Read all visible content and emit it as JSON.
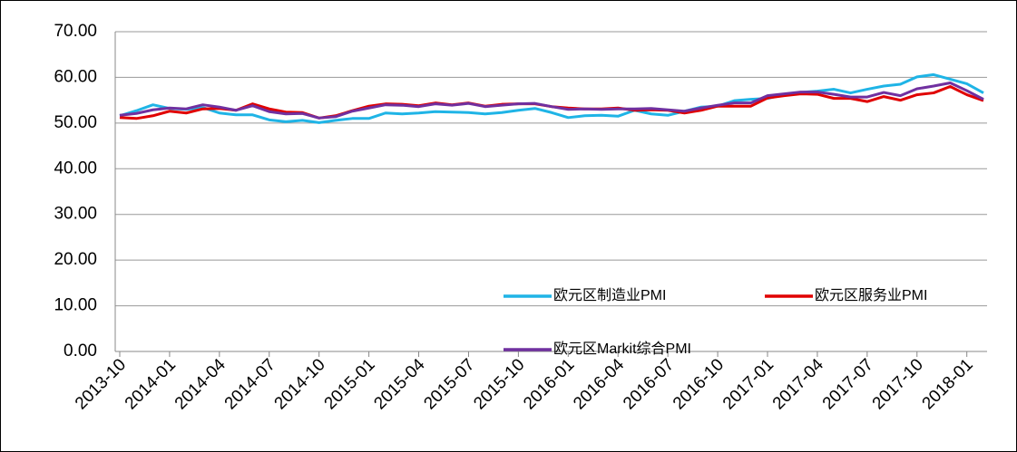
{
  "chart_data": {
    "type": "line",
    "categories": [
      "2013-10",
      null,
      null,
      "2014-01",
      null,
      null,
      "2014-04",
      null,
      null,
      "2014-07",
      null,
      null,
      "2014-10",
      null,
      null,
      "2015-01",
      null,
      null,
      "2015-04",
      null,
      null,
      "2015-07",
      null,
      null,
      "2015-10",
      null,
      null,
      "2016-01",
      null,
      null,
      "2016-04",
      null,
      null,
      "2016-07",
      null,
      null,
      "2016-10",
      null,
      null,
      "2017-01",
      null,
      null,
      "2017-04",
      null,
      null,
      "2017-07",
      null,
      null,
      "2017-10",
      null,
      null,
      "2018-01",
      null
    ],
    "series": [
      {
        "name": "欧元区制造业PMI",
        "color": "#1fb4e6",
        "values": [
          51.6,
          52.7,
          54.0,
          53.2,
          53.0,
          53.4,
          52.2,
          51.8,
          51.8,
          50.7,
          50.3,
          50.6,
          50.1,
          50.6,
          51.0,
          51.0,
          52.2,
          52.0,
          52.2,
          52.5,
          52.4,
          52.3,
          52.0,
          52.3,
          52.8,
          53.2,
          52.3,
          51.2,
          51.6,
          51.7,
          51.5,
          52.8,
          52.0,
          51.7,
          52.6,
          53.5,
          53.7,
          54.9,
          55.2,
          55.4,
          56.2,
          56.7,
          57.0,
          57.4,
          56.6,
          57.4,
          58.1,
          58.5,
          60.1,
          60.6,
          59.6,
          58.6,
          56.6
        ]
      },
      {
        "name": "欧元区服务业PMI",
        "color": "#e00000",
        "values": [
          51.2,
          51.0,
          51.6,
          52.6,
          52.2,
          53.1,
          53.2,
          52.8,
          54.2,
          53.1,
          52.4,
          52.3,
          51.1,
          51.6,
          52.7,
          53.7,
          54.2,
          54.1,
          53.8,
          54.4,
          54.0,
          54.4,
          53.7,
          54.1,
          54.2,
          54.2,
          53.6,
          53.3,
          53.1,
          53.1,
          53.3,
          52.8,
          52.9,
          52.8,
          52.2,
          52.8,
          53.7,
          53.7,
          53.7,
          55.5,
          56.0,
          56.4,
          56.3,
          55.4,
          55.4,
          54.7,
          55.8,
          55.0,
          56.2,
          56.6,
          58.0,
          56.2,
          54.9
        ]
      },
      {
        "name": "欧元区Markit综合PMI",
        "color": "#7030a0",
        "values": [
          51.7,
          52.1,
          52.9,
          53.3,
          53.1,
          54.0,
          53.5,
          52.8,
          53.8,
          52.5,
          52.0,
          52.1,
          51.1,
          51.4,
          52.6,
          53.3,
          54.0,
          53.9,
          53.6,
          54.2,
          53.9,
          54.3,
          53.6,
          53.9,
          54.2,
          54.3,
          53.6,
          53.0,
          53.1,
          53.0,
          53.1,
          53.1,
          53.2,
          52.9,
          52.6,
          53.3,
          53.9,
          54.4,
          54.4,
          56.0,
          56.4,
          56.8,
          56.8,
          56.3,
          55.7,
          55.7,
          56.7,
          56.0,
          57.5,
          58.1,
          58.8,
          57.1,
          55.2
        ]
      }
    ],
    "ylim": [
      0,
      70
    ],
    "yticks": [
      {
        "value": 0,
        "label": "0.00"
      },
      {
        "value": 10,
        "label": "10.00"
      },
      {
        "value": 20,
        "label": "20.00"
      },
      {
        "value": 30,
        "label": "30.00"
      },
      {
        "value": 40,
        "label": "40.00"
      },
      {
        "value": 50,
        "label": "50.00"
      },
      {
        "value": 60,
        "label": "60.00"
      },
      {
        "value": 70,
        "label": "70.00"
      }
    ],
    "grid": true
  }
}
